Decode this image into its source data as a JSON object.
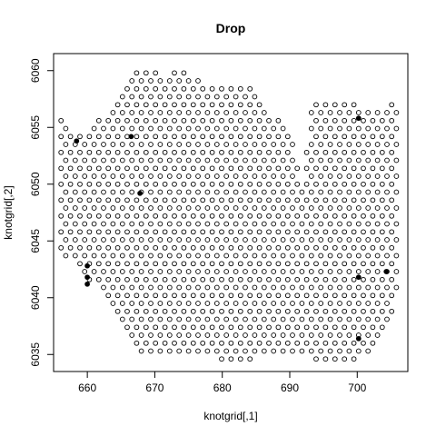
{
  "chart_data": {
    "type": "scatter",
    "title": "Drop",
    "xlabel": "knotgrid[,1]",
    "ylabel": "knotgrid[,2]",
    "xlim": [
      655,
      707.5
    ],
    "ylim": [
      6033.5,
      6061.5
    ],
    "xticks": [
      660,
      670,
      680,
      690,
      700
    ],
    "yticks": [
      6035,
      6040,
      6045,
      6050,
      6055,
      6060
    ],
    "grid": false,
    "legend": "none",
    "colors": {
      "point_stroke": "#000000",
      "filled_point": "#000000",
      "axis": "#000000"
    },
    "grid_pattern": {
      "x_spacing": 1.4,
      "y_spacing": 0.7,
      "x_origin": 656.1,
      "y_origin": 6034.6,
      "row_stagger": 0.7
    },
    "boundary_polygon": [
      [
        656.0,
        6043.8
      ],
      [
        656.0,
        6055.9
      ],
      [
        658.5,
        6054.6
      ],
      [
        661.0,
        6055.2
      ],
      [
        663.0,
        6056.4
      ],
      [
        665.0,
        6058.8
      ],
      [
        667.0,
        6060.1
      ],
      [
        669.5,
        6060.5
      ],
      [
        672.0,
        6059.6
      ],
      [
        674.5,
        6060.5
      ],
      [
        676.0,
        6059.6
      ],
      [
        678.0,
        6058.7
      ],
      [
        680.0,
        6059.1
      ],
      [
        682.0,
        6058.5
      ],
      [
        684.0,
        6058.5
      ],
      [
        686.0,
        6056.7
      ],
      [
        688.5,
        6055.6
      ],
      [
        690.5,
        6054.6
      ],
      [
        691.8,
        6049.5
      ],
      [
        693.0,
        6055.7
      ],
      [
        693.5,
        6057.3
      ],
      [
        698.0,
        6057.3
      ],
      [
        702.0,
        6056.8
      ],
      [
        706.3,
        6057.3
      ],
      [
        706.3,
        6040.4
      ],
      [
        704.5,
        6037.4
      ],
      [
        702.0,
        6035.2
      ],
      [
        698.5,
        6034.3
      ],
      [
        694.0,
        6034.5
      ],
      [
        690.0,
        6034.8
      ],
      [
        683.0,
        6034.5
      ],
      [
        676.0,
        6034.7
      ],
      [
        668.0,
        6034.7
      ],
      [
        666.0,
        6036.2
      ],
      [
        664.5,
        6037.6
      ],
      [
        662.8,
        6039.4
      ],
      [
        661.0,
        6041.0
      ],
      [
        659.5,
        6042.0
      ],
      [
        658.0,
        6043.0
      ]
    ],
    "filled_points": [
      {
        "x": 658.4,
        "y": 6053.8
      },
      {
        "x": 660.0,
        "y": 6042.8
      },
      {
        "x": 660.0,
        "y": 6041.8
      },
      {
        "x": 660.0,
        "y": 6041.2
      },
      {
        "x": 666.5,
        "y": 6054.2
      },
      {
        "x": 667.8,
        "y": 6049.2
      },
      {
        "x": 700.2,
        "y": 6055.8
      },
      {
        "x": 700.2,
        "y": 6041.8
      },
      {
        "x": 700.2,
        "y": 6036.4
      },
      {
        "x": 704.3,
        "y": 6042.3
      }
    ]
  }
}
